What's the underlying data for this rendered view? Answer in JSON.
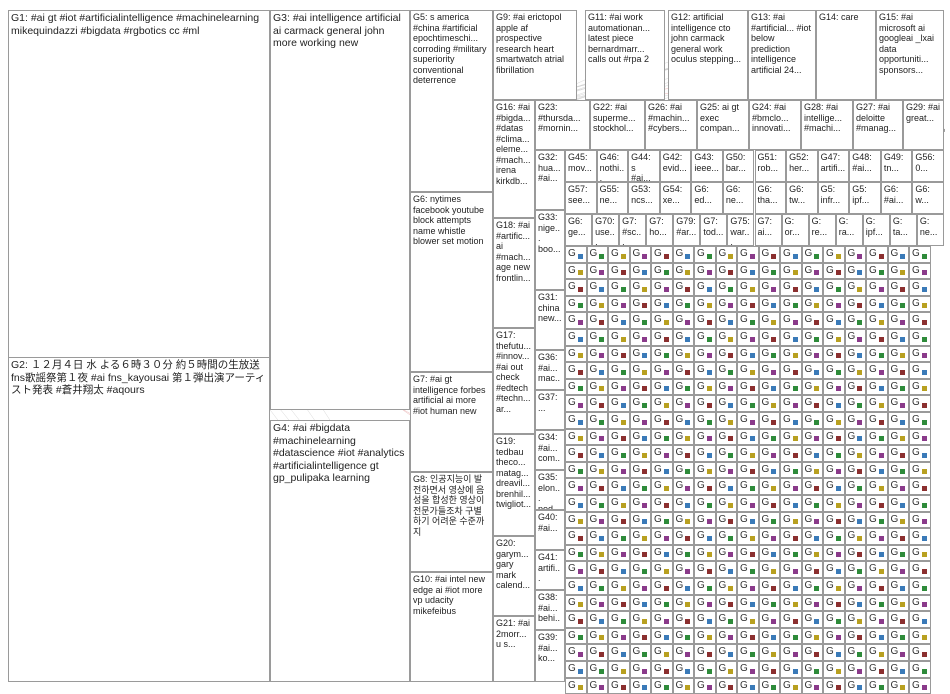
{
  "title": "",
  "groups": [
    {
      "id": "G1",
      "label": "G1: #ai gt #iot #artificialintelligence #machinelearning mikequindazzi #bigdata #rgbotics cc #ml",
      "color": "#3a4a8a"
    },
    {
      "id": "G2",
      "label": "G2: １２月４日 水 よる６時３０分 約５時間の生放送 fns歌謡祭第１夜 #ai fns_kayousai 第１弾出演アーティスト発表 #蒼井翔太 #aqours",
      "color": "#3a7ab8"
    },
    {
      "id": "G3",
      "label": "G3: #ai intelligence artificial ai carmack general john more working new",
      "color": "#2f6f5a"
    },
    {
      "id": "G4",
      "label": "G4: #ai #bigdata #machinelearning #datascience #iot #analytics #artificialintelligence gt gp_pulipaka learning",
      "color": "#2e8b3a"
    },
    {
      "id": "G5",
      "label": "G5: s america #china #artificial epochtimeschi... corroding #military superiority conventional deterrence",
      "color": "#8b2f2f"
    },
    {
      "id": "G6",
      "label": "G6: nytimes facebook youtube block attempts name whistle blower set motion",
      "color": "#444444"
    },
    {
      "id": "G7",
      "label": "G7: #ai gt intelligence forbes artificial ai more #iot human new",
      "color": "#b8a020"
    },
    {
      "id": "G8",
      "label": "G8: 인공지능이 발전하면서 영상에 음성을 합성한 영상이 전문가들조차 구별하기 어려운 수준까지",
      "color": "#555555"
    },
    {
      "id": "G9",
      "label": "G9: #ai erictopol apple af prospective research heart smartwatch atrial fibrillation",
      "color": "#8a3a8a"
    },
    {
      "id": "G10",
      "label": "G10: #ai intel new edge ai #iot more vp udacity mikefeibus",
      "color": "#3a3a8a"
    },
    {
      "id": "G11",
      "label": "G11: #ai work automationan... latest piece bernardmarr... calls out #rpa 2",
      "color": "#6a6a6a"
    },
    {
      "id": "G12",
      "label": "G12: artificial intelligence cto john carmack general work oculus stepping...",
      "color": "#6a6a6a"
    },
    {
      "id": "G13",
      "label": "G13: #ai #artificial... #iot below prediction intelligence artificial 24...",
      "color": "#6a6a6a"
    },
    {
      "id": "G14",
      "label": "G14: care",
      "color": "#3a7ab8"
    },
    {
      "id": "G15",
      "label": "G15: #ai microsoft ai googleai _lxai data opportuniti... sponsors...",
      "color": "#6a6a6a"
    },
    {
      "id": "G16",
      "label": "G16: #ai #bigda... #datas #clima... eleme... #mach... irena kirkdb...",
      "color": "#6a6a6a"
    },
    {
      "id": "G17",
      "label": "G17: thefutu... #innov... #ai out check #edtech #techn... ar...",
      "color": "#6a6a6a"
    },
    {
      "id": "G18",
      "label": "G18: #ai #artific... ai #mach... age new frontlin...",
      "color": "#6a6a6a"
    },
    {
      "id": "G19",
      "label": "G19: tedbau theco... matag... dreavil... brenhil... twigliot...",
      "color": "#6a6a6a"
    },
    {
      "id": "G20",
      "label": "G20: garym... gary mark calend...",
      "color": "#6a6a6a"
    },
    {
      "id": "G21",
      "label": "G21: #ai 2morr... u s...",
      "color": "#6a6a6a"
    },
    {
      "id": "G22",
      "label": "G22: #ai superme... stockhol...",
      "color": "#6a6a6a"
    },
    {
      "id": "G23",
      "label": "G23: #thursda... #mornin...",
      "color": "#6a6a6a"
    },
    {
      "id": "G24",
      "label": "G24: #ai #bmclo... innovati...",
      "color": "#6a6a6a"
    },
    {
      "id": "G25",
      "label": "G25: ai gt exec compan...",
      "color": "#6a6a6a"
    },
    {
      "id": "G26",
      "label": "G26: #ai #machin... #cybers...",
      "color": "#6a6a6a"
    },
    {
      "id": "G27",
      "label": "G27: #ai deloitte #manag...",
      "color": "#6a6a6a"
    },
    {
      "id": "G28",
      "label": "G28: #ai intellige... #machi...",
      "color": "#6a6a6a"
    },
    {
      "id": "G29",
      "label": "G29: #ai great...",
      "color": "#6a6a6a"
    },
    {
      "id": "G31",
      "label": "G31: china new...",
      "color": "#6a6a6a"
    },
    {
      "id": "G32",
      "label": "G32: hua... #ai...",
      "color": "#6a6a6a"
    },
    {
      "id": "G33",
      "label": "G33: nige... boo...",
      "color": "#6a6a6a"
    },
    {
      "id": "G34",
      "label": "G34: #ai... com...",
      "color": "#6a6a6a"
    },
    {
      "id": "G35",
      "label": "G35: elon... pod...",
      "color": "#6a6a6a"
    },
    {
      "id": "G36",
      "label": "G36: #ai... mac...",
      "color": "#6a6a6a"
    },
    {
      "id": "G37",
      "label": "G37: ...",
      "color": "#6a6a6a"
    },
    {
      "id": "G38",
      "label": "G38: #ai... behi...",
      "color": "#6a6a6a"
    },
    {
      "id": "G39",
      "label": "G39: #ai... ko...",
      "color": "#6a6a6a"
    },
    {
      "id": "G40",
      "label": "G40: #ai...",
      "color": "#6a6a6a"
    },
    {
      "id": "G41",
      "label": "G41: artifi...",
      "color": "#6a6a6a"
    }
  ],
  "row_small_labels": [
    [
      "G45: mov...",
      "G46: nothi...",
      "G44: s #ai...",
      "G42: evid...",
      "G43: ieee...",
      "G50: bar...",
      "G51: rob...",
      "G52: her...",
      "G47: artifi...",
      "G48: #ai...",
      "G49: tn...",
      "G56: 0..."
    ],
    [
      "G57: see...",
      "G55: ne...",
      "G53: ncs...",
      "G54: xe...",
      "G6: ed...",
      "G6: ne...",
      "G6: tha...",
      "G6: tw...",
      "G5: infr...",
      "G5: ipf...",
      "G6: #ai...",
      "G6: w..."
    ],
    [
      "G6: ge...",
      "G70: use...",
      "G7: #sc...",
      "G7: ho...",
      "G79: #ar...",
      "G7: tod...",
      "G75: war...",
      "G7: ai...",
      "G: or...",
      "G: re...",
      "G: ra...",
      "G: ipf...",
      "G: ta...",
      "G: ne..."
    ]
  ],
  "tile_letter": "G"
}
